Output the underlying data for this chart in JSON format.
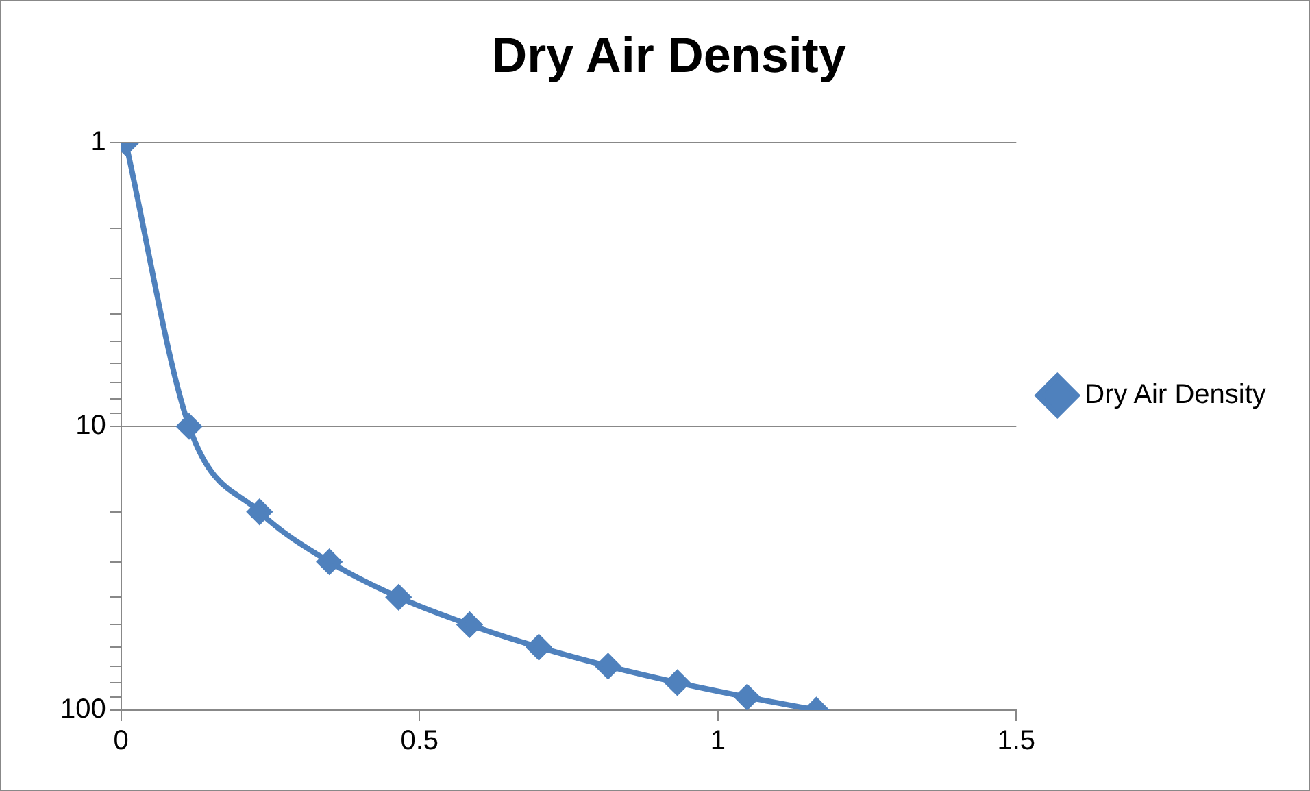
{
  "chart_data": {
    "type": "line",
    "title": "Dry Air Density",
    "series": [
      {
        "name": "Dry Air Density",
        "color": "#4f81bd",
        "x": [
          0.008,
          0.114,
          0.232,
          0.349,
          0.465,
          0.584,
          0.7,
          0.816,
          0.932,
          1.049,
          1.165
        ],
        "values": [
          1,
          10,
          20,
          30,
          40,
          50,
          60,
          70,
          80,
          90,
          100
        ]
      }
    ],
    "log": "y",
    "xlim": [
      0,
      1.5
    ],
    "xticks": [
      0,
      0.5,
      1,
      1.5
    ],
    "ylim": [
      100,
      1
    ],
    "yticks": [
      1,
      {
        "value": 2,
        "label": null
      },
      {
        "value": 3,
        "label": null
      },
      {
        "value": 4,
        "label": null
      },
      {
        "value": 5,
        "label": null
      },
      {
        "value": 6,
        "label": null
      },
      {
        "value": 7,
        "label": null
      },
      {
        "value": 8,
        "label": null
      },
      {
        "value": 9,
        "label": null
      },
      10,
      {
        "value": 20,
        "label": null
      },
      {
        "value": 30,
        "label": null
      },
      {
        "value": 40,
        "label": null
      },
      {
        "value": 50,
        "label": null
      },
      {
        "value": 60,
        "label": null
      },
      {
        "value": 70,
        "label": null
      },
      {
        "value": 80,
        "label": null
      },
      {
        "value": 90,
        "label": null
      },
      100
    ],
    "grid": "y",
    "legend": "right",
    "marker": "diamond",
    "line_style": "solid"
  }
}
